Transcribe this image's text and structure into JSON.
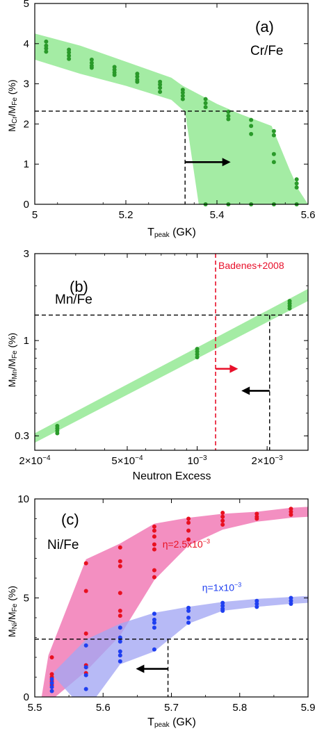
{
  "chart_data": [
    {
      "type": "scatter",
      "panel_label": "(a)",
      "ratio_label": "Cr/Fe",
      "xlabel": {
        "main": "T",
        "sub": "peak",
        "unit": " (GK)"
      },
      "ylabel": {
        "m": "M",
        "s1": "Cr",
        "slash": "/M",
        "s2": "Fe",
        "unit": " (%)"
      },
      "xlim": [
        5.0,
        5.6
      ],
      "ylim": [
        0,
        5
      ],
      "xticks": [
        "5",
        "5.2",
        "5.4",
        "5.6"
      ],
      "xtick_values": [
        5.0,
        5.2,
        5.4,
        5.6
      ],
      "yticks": [
        "0",
        "1",
        "2",
        "3",
        "4",
        "5"
      ],
      "ytick_values": [
        0,
        1,
        2,
        3,
        4,
        5
      ],
      "band_color": "#a4eca4",
      "point_color": "#2a9a2a",
      "band": {
        "upper": [
          [
            5.0,
            4.25
          ],
          [
            5.1,
            3.95
          ],
          [
            5.2,
            3.55
          ],
          [
            5.3,
            3.15
          ],
          [
            5.325,
            2.95
          ],
          [
            5.4,
            2.5
          ],
          [
            5.45,
            2.25
          ],
          [
            5.52,
            1.95
          ],
          [
            5.56,
            0.85
          ],
          [
            5.58,
            0.35
          ],
          [
            5.6,
            0.0
          ]
        ],
        "lower": [
          [
            5.0,
            3.6
          ],
          [
            5.1,
            3.25
          ],
          [
            5.2,
            2.95
          ],
          [
            5.3,
            2.6
          ],
          [
            5.33,
            2.3
          ],
          [
            5.36,
            0.0
          ]
        ]
      },
      "points": [
        {
          "x": 5.025,
          "y": [
            4.05,
            3.95,
            3.88,
            3.8
          ]
        },
        {
          "x": 5.075,
          "y": [
            3.85,
            3.78,
            3.7,
            3.62
          ]
        },
        {
          "x": 5.125,
          "y": [
            3.6,
            3.52,
            3.45,
            3.4
          ]
        },
        {
          "x": 5.175,
          "y": [
            3.42,
            3.35,
            3.28,
            3.22
          ]
        },
        {
          "x": 5.225,
          "y": [
            3.25,
            3.18,
            3.1,
            3.05
          ]
        },
        {
          "x": 5.275,
          "y": [
            3.05,
            2.98,
            2.9,
            2.8
          ]
        },
        {
          "x": 5.325,
          "y": [
            2.85,
            2.78,
            2.7,
            2.62
          ]
        },
        {
          "x": 5.375,
          "y": [
            2.62,
            2.52,
            2.42,
            0.0
          ]
        },
        {
          "x": 5.425,
          "y": [
            2.3,
            2.2,
            2.12,
            0.0
          ]
        },
        {
          "x": 5.475,
          "y": [
            2.1,
            1.95,
            1.75,
            0.0
          ]
        },
        {
          "x": 5.525,
          "y": [
            1.82,
            1.72,
            1.25,
            1.05,
            0.0
          ]
        },
        {
          "x": 5.575,
          "y": [
            0.62,
            0.52,
            0.42,
            0.0
          ]
        }
      ],
      "hline_y": 2.32,
      "vline_x": 5.33,
      "arrow": {
        "y": 1.05,
        "x_start": 5.33,
        "x_end": 5.43,
        "color": "#000000"
      }
    },
    {
      "type": "scatter",
      "panel_label": "(b)",
      "ratio_label": "Mn/Fe",
      "xlabel": "Neutron Excess",
      "ylabel": {
        "m": "M",
        "s1": "Mn",
        "slash": "/M",
        "s2": "Fe",
        "unit": " (%)"
      },
      "xscale": "log",
      "yscale": "log",
      "xlim": [
        0.0002,
        0.003
      ],
      "ylim": [
        0.25,
        3.0
      ],
      "xticks": [
        {
          "value": 0.0002,
          "base": "2×10",
          "exp": "−4"
        },
        {
          "value": 0.0005,
          "base": "5×10",
          "exp": "−4"
        },
        {
          "value": 0.001,
          "base": "10",
          "exp": "−3"
        },
        {
          "value": 0.002,
          "base": "2×10",
          "exp": "−3"
        }
      ],
      "yticks": [
        {
          "value": 0.3,
          "label": "0.3"
        },
        {
          "value": 1,
          "label": "1"
        },
        {
          "value": 3,
          "label": "3"
        }
      ],
      "band_color": "#a4eca4",
      "point_color": "#2a9a2a",
      "band": {
        "upper": [
          [
            0.0002,
            0.31
          ],
          [
            0.003,
            1.92
          ]
        ],
        "lower": [
          [
            0.0002,
            0.275
          ],
          [
            0.003,
            1.65
          ]
        ]
      },
      "points": [
        {
          "x": 0.00025,
          "y": [
            0.34,
            0.33,
            0.32,
            0.31
          ]
        },
        {
          "x": 0.001,
          "y": [
            0.9,
            0.87,
            0.84,
            0.81
          ]
        },
        {
          "x": 0.0025,
          "y": [
            1.65,
            1.6,
            1.55,
            1.5
          ]
        }
      ],
      "hline_y": 1.38,
      "vline_x": 0.00205,
      "reference": {
        "x": 0.0012,
        "label": "Badenes+2008",
        "color": "#e8102a"
      },
      "arrows": [
        {
          "y": 0.7,
          "x_start": 0.0012,
          "x_end": 0.0015,
          "color": "#e8102a"
        },
        {
          "y": 0.53,
          "x_start": 0.00205,
          "x_end": 0.00155,
          "color": "#000000"
        }
      ]
    },
    {
      "type": "scatter",
      "panel_label": "(c)",
      "ratio_label": "Ni/Fe",
      "xlabel": {
        "main": "T",
        "sub": "peak",
        "unit": " (GK)"
      },
      "ylabel": {
        "m": "M",
        "s1": "Ni",
        "slash": "/M",
        "s2": "Fe",
        "unit": " (%)"
      },
      "xlim": [
        5.5,
        5.9
      ],
      "ylim": [
        0,
        10
      ],
      "xticks": [
        "5.5",
        "5.6",
        "5.7",
        "5.8",
        "5.9"
      ],
      "xtick_values": [
        5.5,
        5.6,
        5.7,
        5.8,
        5.9
      ],
      "yticks": [
        "0",
        "5",
        "10"
      ],
      "ytick_values": [
        0,
        5,
        10
      ],
      "series": [
        {
          "name_parts": {
            "pre": "η=2.5x10",
            "exp": "−3"
          },
          "color": "#e81020",
          "band_color": "#f06fb0",
          "label_pos": {
            "x": 5.687,
            "y": 7.55
          },
          "band": {
            "upper": [
              [
                5.52,
                2.1
              ],
              [
                5.575,
                6.95
              ],
              [
                5.625,
                7.75
              ],
              [
                5.675,
                8.75
              ],
              [
                5.725,
                9.05
              ],
              [
                5.775,
                9.25
              ],
              [
                5.825,
                9.35
              ],
              [
                5.875,
                9.55
              ],
              [
                5.9,
                9.6
              ]
            ],
            "lower": [
              [
                5.51,
                0.0
              ],
              [
                5.53,
                0.0
              ],
              [
                5.575,
                1.3
              ],
              [
                5.625,
                3.1
              ],
              [
                5.675,
                5.9
              ],
              [
                5.725,
                7.65
              ],
              [
                5.775,
                8.45
              ],
              [
                5.825,
                8.85
              ],
              [
                5.875,
                9.05
              ],
              [
                5.9,
                9.1
              ]
            ]
          },
          "points": [
            {
              "x": 5.525,
              "y": [
                2.0,
                1.15,
                1.0,
                0.8,
                0.6
              ]
            },
            {
              "x": 5.575,
              "y": [
                6.75,
                5.35,
                3.2,
                1.6,
                1.2
              ]
            },
            {
              "x": 5.625,
              "y": [
                7.55,
                6.85,
                6.6,
                5.25,
                4.35,
                4.1
              ]
            },
            {
              "x": 5.675,
              "y": [
                8.6,
                8.4,
                8.1,
                7.7,
                7.45,
                6.4,
                6.05
              ]
            },
            {
              "x": 5.725,
              "y": [
                9.0,
                8.8,
                8.4,
                7.95
              ]
            },
            {
              "x": 5.775,
              "y": [
                9.3,
                9.1,
                8.9,
                8.7
              ]
            },
            {
              "x": 5.825,
              "y": [
                9.25,
                9.1,
                9.0
              ]
            },
            {
              "x": 5.875,
              "y": [
                9.5,
                9.35,
                9.2
              ]
            }
          ]
        },
        {
          "name_parts": {
            "pre": "η=1x10",
            "exp": "−3"
          },
          "color": "#1f3ff0",
          "band_color": "#a3a6f4",
          "label_pos": {
            "x": 5.745,
            "y": 5.35
          },
          "band": {
            "upper": [
              [
                5.525,
                1.15
              ],
              [
                5.575,
                2.9
              ],
              [
                5.625,
                3.7
              ],
              [
                5.675,
                4.25
              ],
              [
                5.725,
                4.55
              ],
              [
                5.775,
                4.8
              ],
              [
                5.825,
                4.95
              ],
              [
                5.875,
                5.05
              ],
              [
                5.9,
                5.1
              ]
            ],
            "lower": [
              [
                5.555,
                0.0
              ],
              [
                5.59,
                0.0
              ],
              [
                5.625,
                1.65
              ],
              [
                5.675,
                2.3
              ],
              [
                5.725,
                3.7
              ],
              [
                5.775,
                4.35
              ],
              [
                5.825,
                4.55
              ],
              [
                5.875,
                4.7
              ],
              [
                5.9,
                4.75
              ]
            ]
          },
          "points": [
            {
              "x": 5.525,
              "y": [
                0.9,
                0.7,
                0.5,
                0.3
              ]
            },
            {
              "x": 5.575,
              "y": [
                2.6,
                1.5,
                1.1,
                0.4
              ]
            },
            {
              "x": 5.625,
              "y": [
                3.5,
                3.0,
                2.8,
                2.3,
                2.1,
                1.8
              ]
            },
            {
              "x": 5.675,
              "y": [
                4.2,
                3.9,
                3.75,
                3.5,
                2.4
              ]
            },
            {
              "x": 5.725,
              "y": [
                4.5,
                4.35,
                4.0,
                3.75
              ]
            },
            {
              "x": 5.775,
              "y": [
                4.75,
                4.6,
                4.45,
                4.35
              ]
            },
            {
              "x": 5.825,
              "y": [
                4.85,
                4.7,
                4.55
              ]
            },
            {
              "x": 5.875,
              "y": [
                5.0,
                4.85,
                4.7
              ]
            }
          ]
        }
      ],
      "hline_y": 2.92,
      "vline_x": 5.695,
      "arrow": {
        "y": 1.42,
        "x_start": 5.695,
        "x_end": 5.648,
        "color": "#000000"
      }
    }
  ]
}
